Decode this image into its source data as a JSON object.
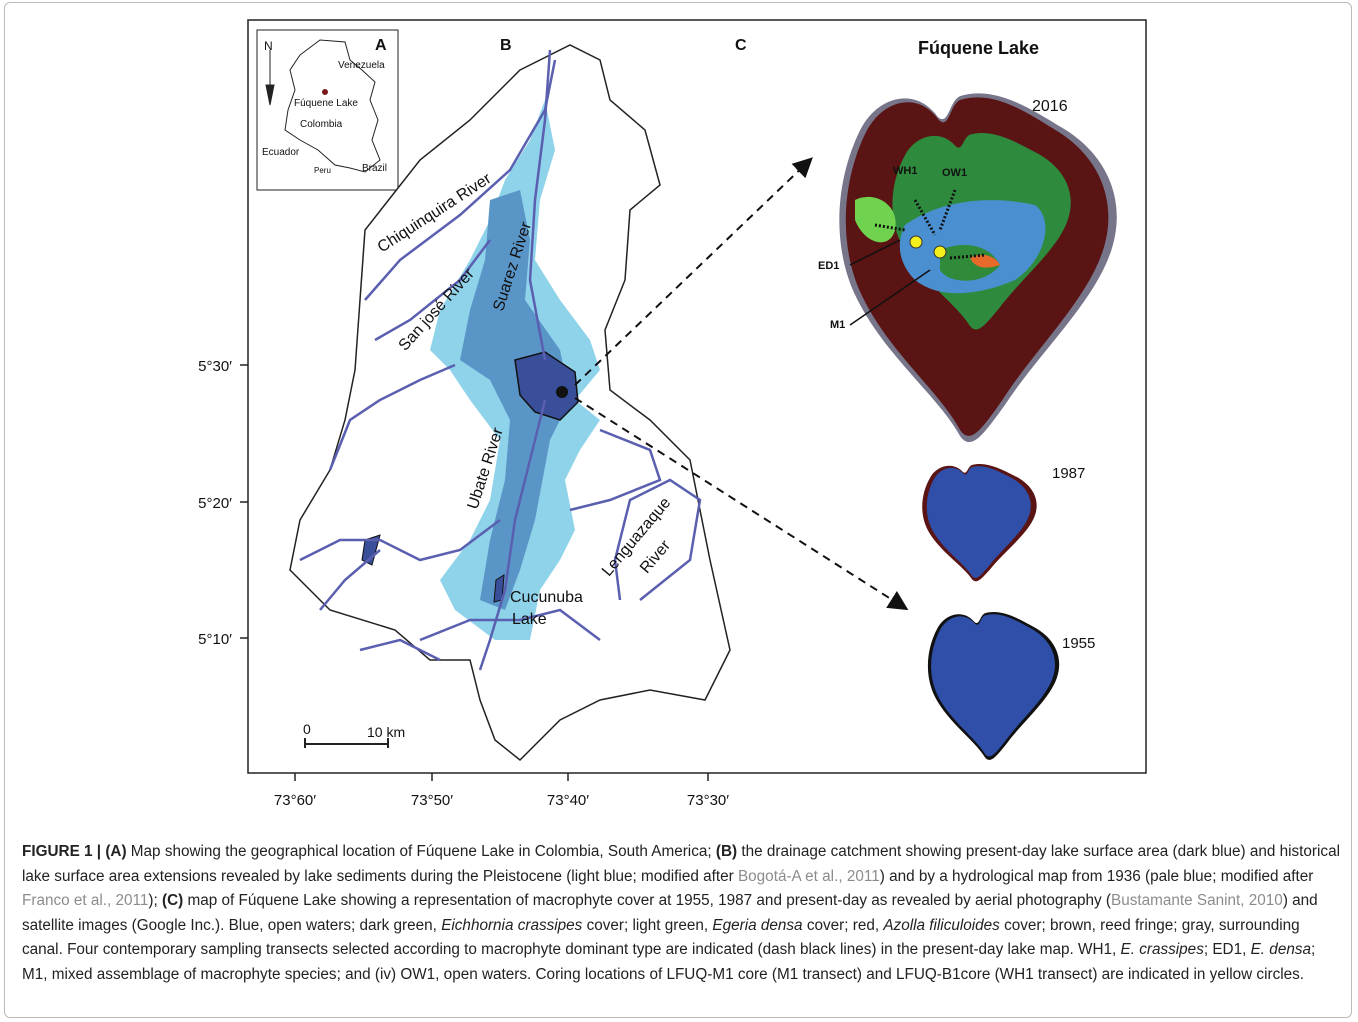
{
  "panels": {
    "a": "A",
    "b": "B",
    "c": "C"
  },
  "inset": {
    "north": "N",
    "venezuela": "Venezuela",
    "lake": "Fúquene Lake",
    "colombia": "Colombia",
    "ecuador": "Ecuador",
    "peru": "Peru",
    "brazil": "Brazil"
  },
  "rivers": {
    "chiquinquira": "Chiquinquira River",
    "sanjose": "San josé River",
    "suarez": "Suarez River",
    "ubate": "Ubate River",
    "lenguazaque": [
      "Lenguazaque",
      "River"
    ]
  },
  "cucunuba": [
    "Cucunuba",
    "Lake"
  ],
  "lake_title": "Fúquene Lake",
  "years": [
    "2016",
    "1987",
    "1955"
  ],
  "transects": [
    "WH1",
    "OW1",
    "ED1",
    "M1"
  ],
  "latitudes": [
    "5°30′",
    "5°20′",
    "5°10′"
  ],
  "longitudes": [
    "73°60′",
    "73°50′",
    "73°40′",
    "73°30′"
  ],
  "scale": [
    "0",
    "10 km"
  ],
  "caption": [
    {
      "text": "FIGURE 1 | (A)",
      "style": "b"
    },
    {
      "text": " Map showing the geographical location of Fúquene Lake in Colombia, South America; ",
      "style": "n"
    },
    {
      "text": "(B)",
      "style": "b"
    },
    {
      "text": " the drainage catchment showing present-day lake surface area (dark blue) and historical lake surface area extensions revealed by lake sediments during the Pleistocene (light blue; modified after ",
      "style": "n"
    },
    {
      "text": "Bogotá-A et al., 2011",
      "style": "l"
    },
    {
      "text": ") and by a hydrological map from 1936 (pale blue; modified after ",
      "style": "n"
    },
    {
      "text": "Franco et al., 2011",
      "style": "l"
    },
    {
      "text": "); ",
      "style": "n"
    },
    {
      "text": "(C)",
      "style": "b"
    },
    {
      "text": " map of Fúquene Lake showing a representation of macrophyte cover at 1955, 1987 and present-day as revealed by aerial photography (",
      "style": "n"
    },
    {
      "text": "Bustamante Sanint, 2010",
      "style": "l"
    },
    {
      "text": ") and satellite images (Google Inc.). Blue, open waters; dark green, ",
      "style": "n"
    },
    {
      "text": "Eichhornia crassipes",
      "style": "i"
    },
    {
      "text": " cover; light green, ",
      "style": "n"
    },
    {
      "text": "Egeria densa",
      "style": "i"
    },
    {
      "text": " cover; red, ",
      "style": "n"
    },
    {
      "text": "Azolla filiculoides",
      "style": "i"
    },
    {
      "text": " cover; brown, reed fringe; gray, surrounding canal. Four contemporary sampling transects selected according to macrophyte dominant type are indicated (dash black lines) in the present-day lake map. WH1, ",
      "style": "n"
    },
    {
      "text": "E. crassipes",
      "style": "i"
    },
    {
      "text": "; ED1, ",
      "style": "n"
    },
    {
      "text": "E. densa",
      "style": "i"
    },
    {
      "text": "; M1, mixed assemblage of macrophyte species; and (iv) OW1, open waters. Coring locations of LFUQ-M1 core (M1 transect) and LFUQ-B1core (WH1 transect) are indicated in yellow circles.",
      "style": "n"
    }
  ]
}
